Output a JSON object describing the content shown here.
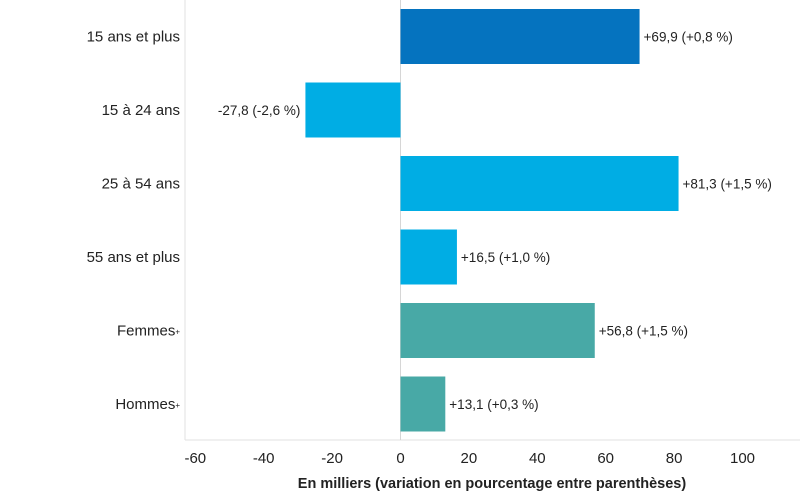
{
  "chart_data": {
    "type": "bar",
    "orientation": "horizontal",
    "categories": [
      "15 ans et plus",
      "15 à 24 ans",
      "25 à 54 ans",
      "55 ans et plus",
      "Femmes",
      "Hommes"
    ],
    "category_superscripts": [
      "",
      "",
      "",
      "",
      "+",
      "+"
    ],
    "values": [
      69.9,
      -27.8,
      81.3,
      16.5,
      56.8,
      13.1
    ],
    "data_labels": [
      "+69,9 (+0,8 %)",
      "-27,8 (-2,6 %)",
      "+81,3 (+1,5 %)",
      "+16,5 (+1,0 %)",
      "+56,8 (+1,5 %)",
      "+13,1 (+0,3 %)"
    ],
    "bar_colors": [
      "#0573bf",
      "#00ade4",
      "#00ade4",
      "#00ade4",
      "#48a9a6",
      "#48a9a6"
    ],
    "xlim": [
      -63,
      117
    ],
    "ticks": [
      -60,
      -40,
      -20,
      0,
      20,
      40,
      60,
      80,
      100
    ],
    "tick_labels": [
      "-60",
      "-40",
      "-20",
      "0",
      "20",
      "40",
      "60",
      "80",
      "100"
    ],
    "xlabel": "En milliers (variation en pourcentage entre parenthèses)",
    "grid": false
  }
}
